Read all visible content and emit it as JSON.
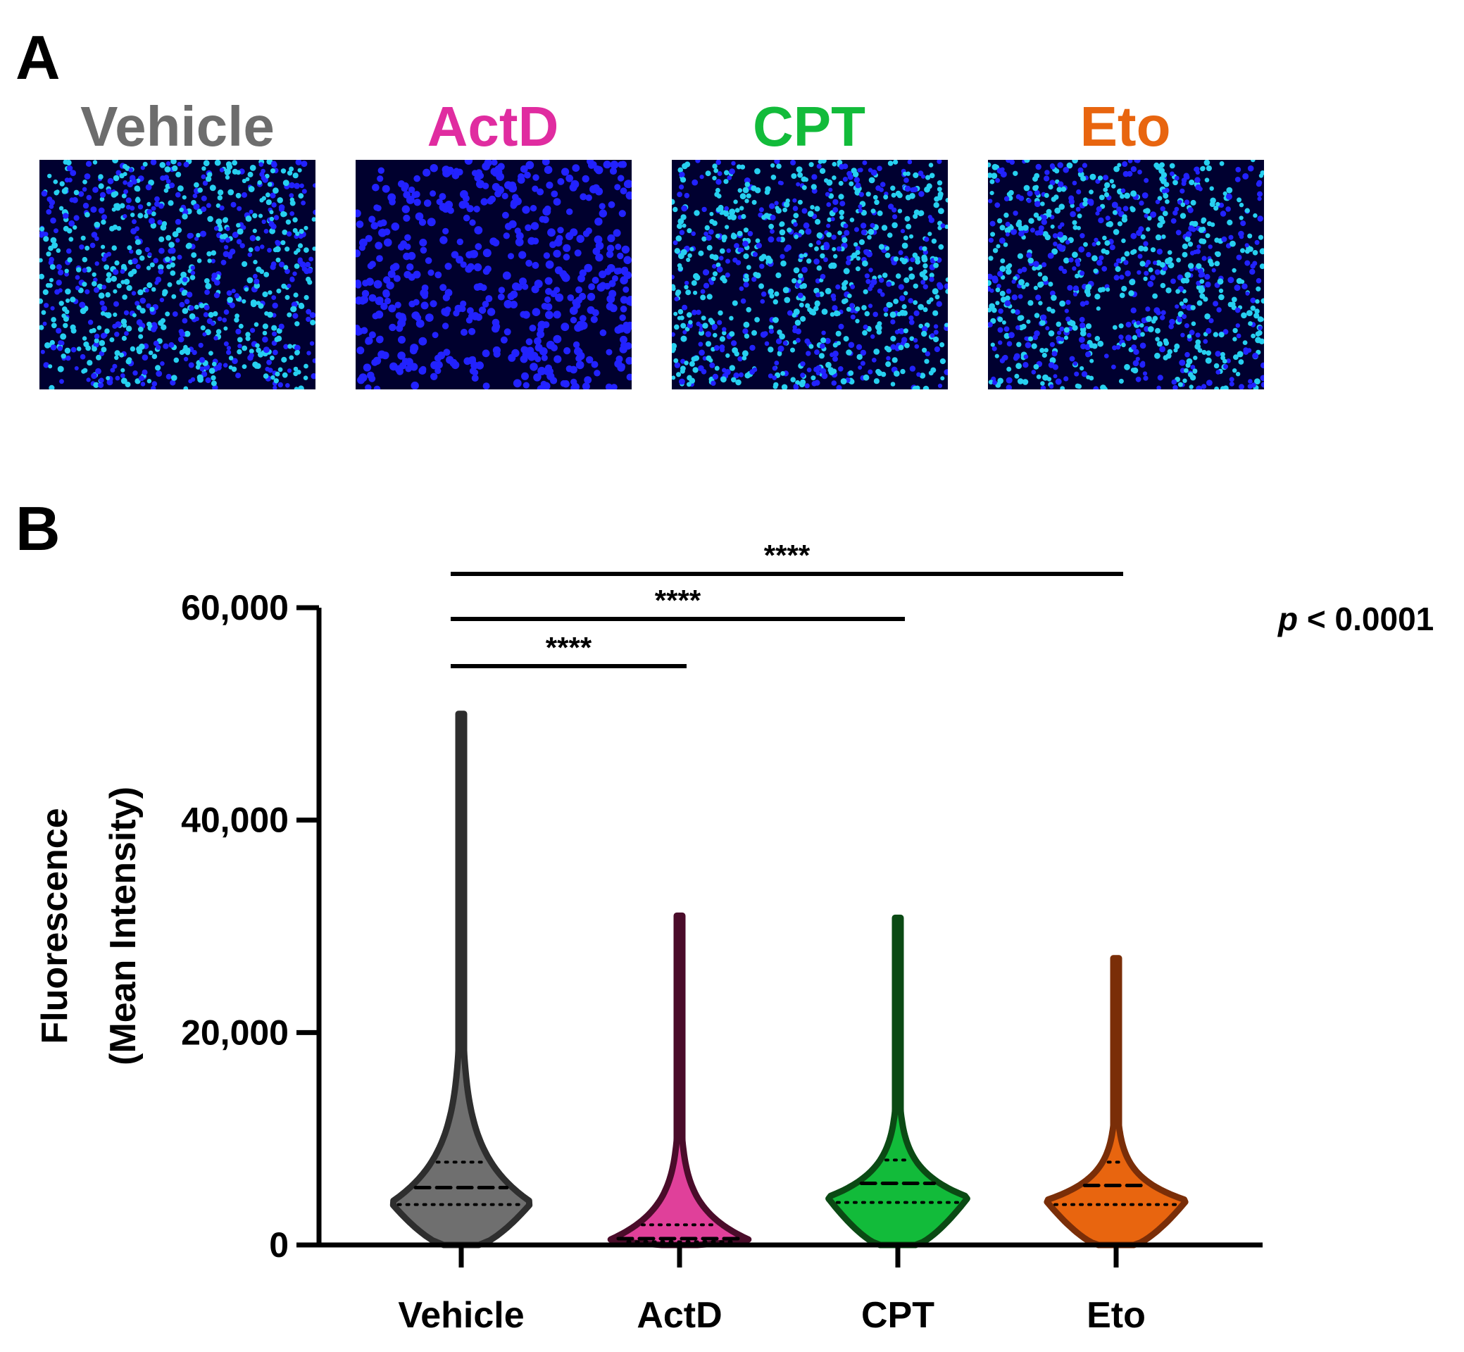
{
  "panel_a": {
    "label": "A",
    "images": [
      {
        "title": "Vehicle",
        "color": "#6d6d6d",
        "nucleus_color": "#2222ff",
        "bright_color": "#27d0f0",
        "bright_fraction": 0.55
      },
      {
        "title": "ActD",
        "color": "#e02ca0",
        "nucleus_color": "#2222ff",
        "bright_color": "#3b3bff",
        "bright_fraction": 0.0
      },
      {
        "title": "CPT",
        "color": "#12bb3a",
        "nucleus_color": "#2222ff",
        "bright_color": "#27d0f0",
        "bright_fraction": 0.6
      },
      {
        "title": "Eto",
        "color": "#e8650f",
        "nucleus_color": "#2222ff",
        "bright_color": "#27d0f0",
        "bright_fraction": 0.55
      }
    ]
  },
  "panel_b": {
    "label": "B",
    "p_value_prefix": "p",
    "p_value_rest": " < 0.0001"
  },
  "chart_data": {
    "type": "violin",
    "ylabel_line1": "Fluorescence",
    "ylabel_line2": "(Mean Intensity)",
    "xlabel": "",
    "ylim": [
      0,
      60000
    ],
    "yticks": [
      0,
      20000,
      40000,
      60000
    ],
    "ytick_labels": [
      "0",
      "20,000",
      "40,000",
      "60,000"
    ],
    "categories": [
      "Vehicle",
      "ActD",
      "CPT",
      "Eto"
    ],
    "series": [
      {
        "name": "Vehicle",
        "fill": "#6f6f6f",
        "stroke": "#2e2e2e",
        "min": 0,
        "max": 50000,
        "q1": 3800,
        "median": 5400,
        "q3": 7800,
        "mode": 4000,
        "max_width_half": 100
      },
      {
        "name": "ActD",
        "fill": "#e0409a",
        "stroke": "#4a0c2a",
        "min": 0,
        "max": 31000,
        "q1": 300,
        "median": 600,
        "q3": 1900,
        "mode": 450,
        "max_width_half": 100
      },
      {
        "name": "CPT",
        "fill": "#12bb3a",
        "stroke": "#0b4a14",
        "min": 0,
        "max": 30800,
        "q1": 4000,
        "median": 5800,
        "q3": 8000,
        "mode": 4500,
        "max_width_half": 100
      },
      {
        "name": "Eto",
        "fill": "#e8650f",
        "stroke": "#7a2e08",
        "min": 0,
        "max": 27000,
        "q1": 3800,
        "median": 5600,
        "q3": 7800,
        "mode": 4200,
        "max_width_half": 100
      }
    ],
    "significance": [
      {
        "from": "Vehicle",
        "to": "ActD",
        "label": "****"
      },
      {
        "from": "Vehicle",
        "to": "CPT",
        "label": "****"
      },
      {
        "from": "Vehicle",
        "to": "Eto",
        "label": "****"
      }
    ]
  }
}
